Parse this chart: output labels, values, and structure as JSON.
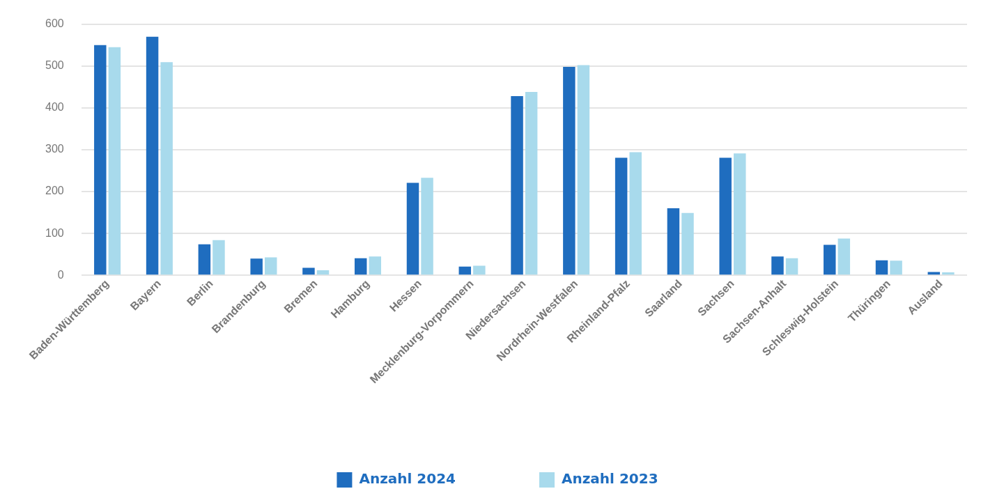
{
  "chart_data": {
    "type": "bar",
    "categories": [
      "Baden-Württemberg",
      "Bayern",
      "Berlin",
      "Brandenburg",
      "Bremen",
      "Hamburg",
      "Hessen",
      "Mecklenburg-Vorpommern",
      "Niedersachsen",
      "Nordrhein-Westfalen",
      "Rheinland-Pfalz",
      "Saarland",
      "Sachsen",
      "Sachsen-Anhalt",
      "Schleswig-Holstein",
      "Thüringen",
      "Ausland"
    ],
    "series": [
      {
        "name": "Anzahl 2024",
        "color": "#1f6dbf",
        "values": [
          550,
          570,
          74,
          40,
          18,
          41,
          221,
          21,
          428,
          498,
          281,
          160,
          281,
          45,
          73,
          36,
          8
        ]
      },
      {
        "name": "Anzahl 2023",
        "color": "#a8daec",
        "values": [
          545,
          509,
          84,
          43,
          12,
          45,
          233,
          23,
          438,
          502,
          294,
          149,
          291,
          41,
          88,
          35,
          7
        ]
      }
    ],
    "ylim": [
      0,
      600
    ],
    "yticks": [
      0,
      100,
      200,
      300,
      400,
      500,
      600
    ],
    "grid": "y",
    "legend": "bottom"
  }
}
